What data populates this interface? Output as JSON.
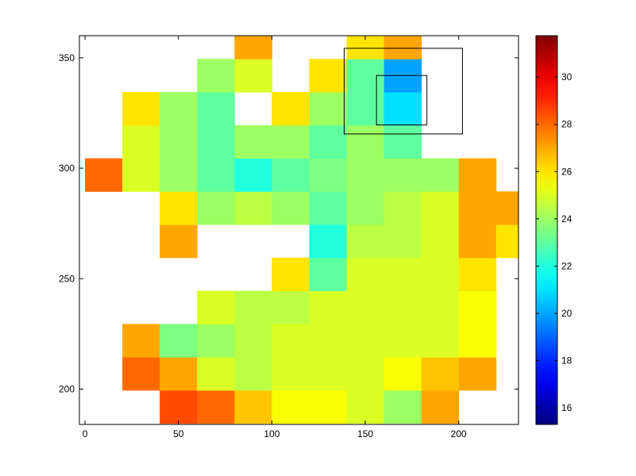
{
  "chart_data": {
    "type": "heatmap",
    "x": [
      10,
      30,
      50,
      70,
      90,
      110,
      130,
      150,
      170,
      190,
      210,
      230
    ],
    "y": [
      192,
      207,
      222,
      237,
      252,
      267,
      282,
      297,
      312,
      327,
      342,
      357
    ],
    "values": [
      [
        null,
        null,
        28.5,
        28,
        26.5,
        25.5,
        25.5,
        25,
        24,
        27,
        null,
        null
      ],
      [
        null,
        28,
        27,
        25,
        24.5,
        25,
        25,
        25,
        25.5,
        26.5,
        27,
        null
      ],
      [
        null,
        27,
        23.5,
        24,
        24.5,
        25,
        25,
        25,
        25,
        25,
        25.5,
        null
      ],
      [
        null,
        null,
        null,
        25,
        24.5,
        24.5,
        25,
        25,
        25,
        25,
        25.5,
        null
      ],
      [
        null,
        null,
        null,
        null,
        null,
        26,
        23,
        25,
        25,
        25,
        26,
        null
      ],
      [
        null,
        null,
        27,
        null,
        null,
        null,
        22,
        24.5,
        24.5,
        25,
        27,
        26
      ],
      [
        null,
        null,
        26,
        24,
        24.5,
        24,
        23,
        24,
        24.5,
        25,
        27,
        27
      ],
      [
        28,
        25,
        24,
        23,
        22,
        23,
        23.5,
        24,
        24,
        24,
        27,
        null
      ],
      [
        null,
        25,
        24,
        23,
        24,
        24,
        23,
        24,
        23,
        null,
        null,
        null
      ],
      [
        null,
        26,
        24,
        23,
        null,
        26,
        24,
        23,
        21,
        null,
        null,
        null
      ],
      [
        null,
        null,
        null,
        24,
        25,
        null,
        26,
        23,
        20,
        null,
        null,
        null
      ],
      [
        null,
        null,
        null,
        null,
        27,
        null,
        null,
        26,
        27,
        null,
        null,
        null
      ]
    ],
    "xlim": [
      -3,
      232
    ],
    "ylim": [
      184,
      360
    ],
    "xticks": [
      0,
      50,
      100,
      150,
      200
    ],
    "yticks": [
      200,
      250,
      300,
      350
    ],
    "colormap": "jet",
    "clim": [
      15.3,
      31.75
    ],
    "cticks": [
      16,
      18,
      20,
      22,
      24,
      26,
      28,
      30
    ],
    "rectangles": [
      {
        "x": [
          138.7,
          202
        ],
        "y": [
          315.5,
          354.3
        ]
      },
      {
        "x": [
          156,
          183
        ],
        "y": [
          319.6,
          342
        ]
      }
    ]
  }
}
